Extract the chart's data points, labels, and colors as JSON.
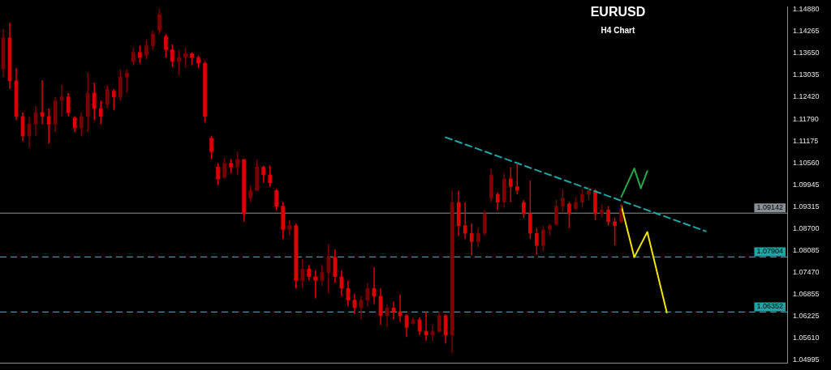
{
  "chart_data": {
    "type": "candlestick",
    "title": "EURUSD",
    "subtitle": "H4 Chart",
    "colors": [
      "#7a0000",
      "#dd0000",
      "#dd0000",
      "#dd0000",
      "#7a0000",
      "#7a0000",
      "#dd0000",
      "#dd0000",
      "#7a0000",
      "#7a0000",
      "#dd0000",
      "#dd0000",
      "#7a0000",
      "#7a0000",
      "#dd0000",
      "#dd0000",
      "#7a0000",
      "#dd0000",
      "#7a0000",
      "#7a0000",
      "#7a0000",
      "#dd0000",
      "#7a0000",
      "#7a0000",
      "#7a0000",
      "#dd0000",
      "#dd0000",
      "#7a0000",
      "#7a0000",
      "#dd0000",
      "#dd0000",
      "#dd0000",
      "#dd0000",
      "#dd0000",
      "#7a0000",
      "#dd0000",
      "#7a0000",
      "#dd0000",
      "#7a0000",
      "#7a0000",
      "#dd0000",
      "#dd0000",
      "#dd0000",
      "#dd0000",
      "#7a0000",
      "#dd0000",
      "#7a0000",
      "#dd0000",
      "#dd0000",
      "#7a0000",
      "#7a0000",
      "#dd0000",
      "#dd0000",
      "#dd0000",
      "#dd0000",
      "#7a0000",
      "#7a0000",
      "#dd0000",
      "#dd0000",
      "#7a0000",
      "#dd0000",
      "#dd0000",
      "#dd0000",
      "#7a0000",
      "#dd0000",
      "#dd0000",
      "#7a0000",
      "#7a0000",
      "#dd0000",
      "#7a0000",
      "#dd0000",
      "#dd0000",
      "#dd0000",
      "#7a0000",
      "#7a0000",
      "#7a0000",
      "#dd0000",
      "#7a0000",
      "#dd0000",
      "#dd0000",
      "#dd0000",
      "#dd0000",
      "#dd0000",
      "#7a0000",
      "#7a0000",
      "#7a0000",
      "#7a0000",
      "#dd0000",
      "#7a0000",
      "#7a0000",
      "#7a0000",
      "#dd0000",
      "#7a0000",
      "#dd0000",
      "#dd0000",
      "#7a0000",
      null,
      null,
      null,
      null,
      null,
      null,
      null,
      null,
      null,
      null,
      null,
      null,
      null,
      null,
      null,
      null,
      null,
      null,
      null,
      null,
      null,
      null,
      null,
      null,
      null
    ],
    "legend": false,
    "tick_labels": "y",
    "categories": [
      null,
      null,
      null,
      null,
      null,
      null,
      null,
      null,
      null,
      null,
      null,
      null,
      null,
      null,
      null,
      null,
      null,
      null,
      null,
      null,
      null,
      null,
      null,
      null,
      null,
      null,
      null,
      null,
      null,
      null,
      null,
      null,
      null,
      null,
      null,
      null,
      null,
      null,
      null,
      null,
      null,
      null,
      null,
      null,
      null,
      null,
      null,
      null,
      null,
      null,
      null,
      null,
      null,
      null,
      null,
      null,
      null,
      null,
      null,
      null,
      null,
      null,
      null,
      null,
      null,
      null,
      null,
      null,
      null,
      null,
      null,
      null,
      null,
      null,
      null,
      null,
      null,
      null,
      null,
      null,
      null,
      null,
      null,
      null,
      null,
      null,
      null,
      null,
      null,
      null,
      null,
      null,
      null,
      null,
      null,
      null,
      null,
      null,
      null,
      null,
      null,
      null,
      null,
      null,
      null,
      null,
      null,
      null,
      null,
      null,
      null,
      null,
      null,
      null,
      null,
      null,
      null,
      null,
      null,
      null,
      null
    ],
    "ohlc": [
      [
        1.132,
        1.1434,
        1.1298,
        1.1408
      ],
      [
        1.1408,
        1.1452,
        1.1264,
        1.1287
      ],
      [
        1.1287,
        1.1324,
        1.1176,
        1.1187
      ],
      [
        1.1187,
        1.1198,
        1.1117,
        1.1132
      ],
      [
        1.1132,
        1.1187,
        1.1099,
        1.1165
      ],
      [
        1.1165,
        1.1216,
        1.1132,
        1.1198
      ],
      [
        1.1198,
        1.1289,
        1.1165,
        1.1187
      ],
      [
        1.1187,
        1.1209,
        1.111,
        1.1165
      ],
      [
        1.1165,
        1.1242,
        1.1143,
        1.1231
      ],
      [
        1.1231,
        1.1276,
        1.1187,
        1.1242
      ],
      [
        1.1242,
        1.1253,
        1.1187,
        1.1198
      ],
      [
        1.1183,
        1.1187,
        1.1143,
        1.1154
      ],
      [
        1.1154,
        1.1198,
        1.1132,
        1.1187
      ],
      [
        1.1187,
        1.1311,
        1.1143,
        1.1253
      ],
      [
        1.1253,
        1.1282,
        1.1176,
        1.1209
      ],
      [
        1.1209,
        1.1231,
        1.1165,
        1.1187
      ],
      [
        1.122,
        1.1276,
        1.1209,
        1.1264
      ],
      [
        1.1258,
        1.1264,
        1.1205,
        1.1242
      ],
      [
        1.1242,
        1.132,
        1.1231,
        1.1298
      ],
      [
        1.1298,
        1.132,
        1.1253,
        1.1309
      ],
      [
        1.1342,
        1.1381,
        1.1331,
        1.1368
      ],
      [
        1.1368,
        1.1386,
        1.1337,
        1.1353
      ],
      [
        1.1359,
        1.1403,
        1.1348,
        1.1386
      ],
      [
        1.1386,
        1.143,
        1.1375,
        1.1419
      ],
      [
        1.143,
        1.149,
        1.1419,
        1.1474
      ],
      [
        1.1412,
        1.1419,
        1.1353,
        1.1375
      ],
      [
        1.1375,
        1.139,
        1.1326,
        1.1342
      ],
      [
        1.1342,
        1.1375,
        1.1302,
        1.1353
      ],
      [
        1.1353,
        1.1381,
        1.1324,
        1.1364
      ],
      [
        1.1364,
        1.1368,
        1.1331,
        1.1353
      ],
      [
        1.1353,
        1.1359,
        1.1324,
        1.1337
      ],
      [
        1.1337,
        1.1342,
        1.117,
        1.1187
      ],
      [
        1.1126,
        1.1132,
        1.1066,
        1.1088
      ],
      [
        1.1044,
        1.1055,
        1.0993,
        1.1011
      ],
      [
        1.1015,
        1.107,
        1.1011,
        1.1055
      ],
      [
        1.1055,
        1.1066,
        1.1026,
        1.1044
      ],
      [
        1.1044,
        1.1088,
        1.1022,
        1.1066
      ],
      [
        1.1066,
        1.1066,
        1.089,
        1.0912
      ],
      [
        1.0956,
        1.0993,
        1.0945,
        1.0978
      ],
      [
        1.0978,
        1.1066,
        1.0978,
        1.1044
      ],
      [
        1.1044,
        1.1048,
        1.1,
        1.1022
      ],
      [
        1.1022,
        1.1048,
        1.0989,
        1.1
      ],
      [
        1.0978,
        1.0982,
        1.0923,
        1.0934
      ],
      [
        1.0934,
        1.0945,
        1.0841,
        1.0868
      ],
      [
        1.0868,
        1.0894,
        1.085,
        1.0879
      ],
      [
        1.0879,
        1.0885,
        1.0702,
        1.0724
      ],
      [
        1.0724,
        1.0784,
        1.0702,
        1.0757
      ],
      [
        1.0757,
        1.0768,
        1.0724,
        1.0735
      ],
      [
        1.0735,
        1.0753,
        1.0674,
        1.0724
      ],
      [
        1.0724,
        1.0768,
        1.0709,
        1.0746
      ],
      [
        1.0746,
        1.0828,
        1.0687,
        1.079
      ],
      [
        1.079,
        1.0812,
        1.0718,
        1.0735
      ],
      [
        1.0735,
        1.0753,
        1.068,
        1.0702
      ],
      [
        1.0702,
        1.0724,
        1.0651,
        1.0669
      ],
      [
        1.0669,
        1.0687,
        1.0629,
        1.0647
      ],
      [
        1.0647,
        1.068,
        1.0614,
        1.0669
      ],
      [
        1.0669,
        1.0718,
        1.0651,
        1.0702
      ],
      [
        1.0702,
        1.0762,
        1.0658,
        1.068
      ],
      [
        1.068,
        1.0702,
        1.0599,
        1.0625
      ],
      [
        1.0625,
        1.0658,
        1.0592,
        1.0647
      ],
      [
        1.0647,
        1.0665,
        1.0614,
        1.0636
      ],
      [
        1.0636,
        1.0685,
        1.0607,
        1.0625
      ],
      [
        1.0625,
        1.0629,
        1.0565,
        1.0592
      ],
      [
        1.0603,
        1.0621,
        1.0599,
        1.0614
      ],
      [
        1.0614,
        1.0621,
        1.057,
        1.0581
      ],
      [
        1.0581,
        1.0636,
        1.0554,
        1.057
      ],
      [
        1.057,
        1.0599,
        1.0554,
        1.0581
      ],
      [
        1.0581,
        1.0636,
        1.0577,
        1.0625
      ],
      [
        1.0625,
        1.0629,
        1.0548,
        1.057
      ],
      [
        1.057,
        1.0978,
        1.0519,
        1.0945
      ],
      [
        1.0945,
        1.0978,
        1.085,
        1.0879
      ],
      [
        1.0879,
        1.0945,
        1.0841,
        1.0857
      ],
      [
        1.0857,
        1.0885,
        1.0795,
        1.0834
      ],
      [
        1.0834,
        1.0872,
        1.0819,
        1.0857
      ],
      [
        1.0857,
        1.0923,
        1.085,
        1.0912
      ],
      [
        1.0956,
        1.104,
        1.0945,
        1.1022
      ],
      [
        1.0967,
        1.0973,
        1.0923,
        1.0945
      ],
      [
        1.0945,
        1.1026,
        1.0929,
        1.1011
      ],
      [
        1.1011,
        1.1044,
        1.0945,
        1.0989
      ],
      [
        1.0989,
        1.1055,
        1.0967,
        1.0978
      ],
      [
        1.0945,
        1.0951,
        1.0901,
        1.0912
      ],
      [
        1.0912,
        1.1006,
        1.0841,
        1.0857
      ],
      [
        1.0857,
        1.0872,
        1.0797,
        1.0823
      ],
      [
        1.0823,
        1.0879,
        1.0806,
        1.0868
      ],
      [
        1.0868,
        1.0885,
        1.085,
        1.0879
      ],
      [
        1.0883,
        1.0951,
        1.0879,
        1.0934
      ],
      [
        1.0934,
        1.0982,
        1.0916,
        1.0956
      ],
      [
        1.094,
        1.0945,
        1.0872,
        1.0912
      ],
      [
        1.0927,
        1.096,
        1.0923,
        1.0945
      ],
      [
        1.0945,
        1.0982,
        1.0929,
        1.0967
      ],
      [
        1.0967,
        1.0989,
        1.0951,
        1.0978
      ],
      [
        1.0978,
        1.0982,
        1.0894,
        1.0912
      ],
      [
        1.0912,
        1.094,
        1.0901,
        1.0923
      ],
      [
        1.0923,
        1.0934,
        1.0879,
        1.089
      ],
      [
        1.089,
        1.0901,
        1.0823,
        1.0879
      ],
      [
        1.089,
        1.094,
        1.0885,
        1.0927
      ],
      null,
      null,
      null,
      null,
      null,
      null,
      null,
      null,
      null,
      null,
      null,
      null,
      null,
      null,
      null,
      null,
      null,
      null,
      null,
      null,
      null,
      null,
      null,
      null,
      null
    ],
    "series": [
      {
        "type": "line",
        "color": "#1fa5a5",
        "line_style": "dashed",
        "values": [
          null,
          null,
          null,
          null,
          null,
          null,
          null,
          null,
          null,
          null,
          null,
          null,
          null,
          null,
          null,
          null,
          null,
          null,
          null,
          null,
          null,
          null,
          null,
          null,
          null,
          null,
          null,
          null,
          null,
          null,
          null,
          null,
          null,
          null,
          null,
          null,
          null,
          null,
          null,
          null,
          null,
          null,
          null,
          null,
          null,
          null,
          null,
          null,
          null,
          null,
          null,
          null,
          null,
          null,
          null,
          null,
          null,
          null,
          null,
          null,
          null,
          null,
          null,
          null,
          null,
          null,
          null,
          null,
          1.1128,
          null,
          null,
          null,
          null,
          null,
          null,
          null,
          null,
          null,
          null,
          null,
          null,
          null,
          null,
          null,
          null,
          null,
          null,
          null,
          null,
          null,
          null,
          null,
          null,
          null,
          null,
          null,
          null,
          null,
          null,
          null,
          null,
          null,
          null,
          null,
          null,
          null,
          null,
          null,
          1.0863,
          null,
          null,
          null,
          null,
          null,
          null,
          null,
          null,
          null,
          null,
          null,
          null
        ]
      },
      {
        "type": "line",
        "color": "#22a84a",
        "line_style": "solid",
        "values": [
          null,
          null,
          null,
          null,
          null,
          null,
          null,
          null,
          null,
          null,
          null,
          null,
          null,
          null,
          null,
          null,
          null,
          null,
          null,
          null,
          null,
          null,
          null,
          null,
          null,
          null,
          null,
          null,
          null,
          null,
          null,
          null,
          null,
          null,
          null,
          null,
          null,
          null,
          null,
          null,
          null,
          null,
          null,
          null,
          null,
          null,
          null,
          null,
          null,
          null,
          null,
          null,
          null,
          null,
          null,
          null,
          null,
          null,
          null,
          null,
          null,
          null,
          null,
          null,
          null,
          null,
          null,
          null,
          null,
          null,
          null,
          null,
          null,
          null,
          null,
          null,
          null,
          null,
          null,
          null,
          null,
          null,
          null,
          null,
          null,
          null,
          null,
          null,
          null,
          null,
          null,
          null,
          null,
          null,
          null,
          1.096,
          null,
          1.104,
          1.0984,
          1.1033,
          null,
          null,
          null,
          null,
          null,
          null,
          null,
          null,
          null,
          null,
          null,
          null,
          null,
          null,
          null,
          null,
          null,
          null,
          null,
          null,
          null
        ]
      },
      {
        "type": "line",
        "color": "#f2e600",
        "line_style": "solid",
        "values": [
          null,
          null,
          null,
          null,
          null,
          null,
          null,
          null,
          null,
          null,
          null,
          null,
          null,
          null,
          null,
          null,
          null,
          null,
          null,
          null,
          null,
          null,
          null,
          null,
          null,
          null,
          null,
          null,
          null,
          null,
          null,
          null,
          null,
          null,
          null,
          null,
          null,
          null,
          null,
          null,
          null,
          null,
          null,
          null,
          null,
          null,
          null,
          null,
          null,
          null,
          null,
          null,
          null,
          null,
          null,
          null,
          null,
          null,
          null,
          null,
          null,
          null,
          null,
          null,
          null,
          null,
          null,
          null,
          null,
          null,
          null,
          null,
          null,
          null,
          null,
          null,
          null,
          null,
          null,
          null,
          null,
          null,
          null,
          null,
          null,
          null,
          null,
          null,
          null,
          null,
          null,
          null,
          null,
          null,
          null,
          1.0936,
          null,
          1.079,
          null,
          1.0861,
          null,
          null,
          1.0634,
          null,
          null,
          null,
          null,
          null,
          null,
          null,
          null,
          null,
          null,
          null,
          null,
          null,
          null,
          null,
          null,
          null,
          null
        ]
      }
    ],
    "ylim": [
      1.0491,
      1.1496
    ],
    "yticks": [
      {
        "value": 1.1488,
        "label": "1.14880"
      },
      1.14265,
      {
        "value": 1.1365,
        "label": "1.13650"
      },
      1.13035,
      {
        "value": 1.1242,
        "label": "1.12420"
      },
      {
        "value": 1.1179,
        "label": "1.11790"
      },
      1.11175,
      {
        "value": 1.1056,
        "label": "1.10560"
      },
      1.09945,
      1.09315,
      {
        "value": 1.087,
        "label": "1.08700"
      },
      1.08085,
      {
        "value": 1.0747,
        "label": "1.07470"
      },
      1.06855,
      1.06225,
      {
        "value": 1.0561,
        "label": "1.05610"
      },
      1.04995
    ],
    "ref_lines": [
      {
        "axis": "y",
        "value": 1.09142,
        "label": "1.09142",
        "color": "#8a8f96",
        "line_style": "solid"
      },
      {
        "axis": "y",
        "value": 1.07904,
        "label": "1.07904",
        "color": "#1fa5a5",
        "line_style": "dashed"
      },
      {
        "axis": "y",
        "value": 1.06352,
        "label": "1.06352",
        "color": "#1fa5a5",
        "line_style": "dashed"
      }
    ]
  }
}
